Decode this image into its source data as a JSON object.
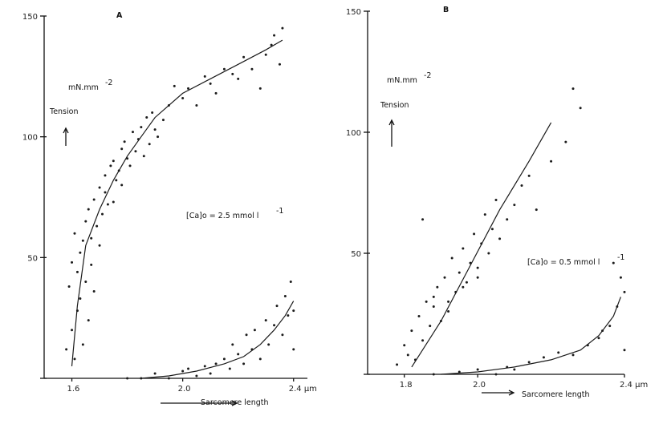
{
  "chart_data": [
    {
      "panel": "A",
      "type": "scatter",
      "xlabel": "Sarcomere length",
      "ylabel": "Tension",
      "unit_y": "mN.mm",
      "unit_y_exp": "-2",
      "x_unit": "µm",
      "xlim": [
        1.5,
        2.45
      ],
      "ylim": [
        0,
        150
      ],
      "x_ticks": [
        1.6,
        2.0,
        2.4
      ],
      "x_tick_labels": [
        "1.6",
        "2.0",
        "2.4 µm"
      ],
      "y_ticks": [
        0,
        50,
        100,
        150
      ],
      "y_tick_labels": [
        "",
        "50",
        "100",
        "150"
      ],
      "annotation": "[Ca]o = 2.5 mmol l",
      "annotation_exp": "-1",
      "series": [
        {
          "curve": {
            "x": [
              1.6,
              1.62,
              1.65,
              1.7,
              1.75,
              1.8,
              1.85,
              1.9,
              2.0,
              2.1,
              2.2,
              2.3,
              2.36
            ],
            "y": [
              5,
              30,
              55,
              70,
              82,
              92,
              100,
              108,
              118,
              124,
              130,
              136,
              140
            ]
          },
          "points": {
            "x": [
              1.58,
              1.59,
              1.6,
              1.6,
              1.61,
              1.61,
              1.62,
              1.62,
              1.63,
              1.63,
              1.64,
              1.64,
              1.65,
              1.65,
              1.66,
              1.66,
              1.67,
              1.67,
              1.68,
              1.68,
              1.69,
              1.7,
              1.7,
              1.71,
              1.72,
              1.72,
              1.73,
              1.74,
              1.75,
              1.75,
              1.76,
              1.77,
              1.78,
              1.78,
              1.79,
              1.8,
              1.81,
              1.82,
              1.83,
              1.84,
              1.85,
              1.86,
              1.87,
              1.88,
              1.89,
              1.9,
              1.91,
              1.93,
              1.95,
              1.97,
              2.0,
              2.02,
              2.05,
              2.08,
              2.1,
              2.12,
              2.15,
              2.18,
              2.2,
              2.22,
              2.25,
              2.28,
              2.3,
              2.32,
              2.33,
              2.35,
              2.36
            ],
            "y": [
              12,
              38,
              20,
              48,
              8,
              60,
              28,
              44,
              33,
              52,
              14,
              57,
              40,
              65,
              24,
              70,
              47,
              58,
              36,
              74,
              63,
              79,
              55,
              68,
              84,
              77,
              72,
              88,
              73,
              90,
              82,
              86,
              95,
              80,
              98,
              91,
              88,
              102,
              94,
              99,
              104,
              92,
              108,
              97,
              110,
              103,
              100,
              107,
              113,
              121,
              116,
              120,
              113,
              125,
              122,
              118,
              128,
              126,
              124,
              133,
              128,
              120,
              134,
              138,
              142,
              130,
              145
            ]
          }
        },
        {
          "curve": {
            "x": [
              1.85,
              1.95,
              2.05,
              2.15,
              2.22,
              2.28,
              2.33,
              2.37,
              2.4
            ],
            "y": [
              0,
              1,
              3,
              6,
              9,
              14,
              20,
              26,
              32
            ]
          },
          "points": {
            "x": [
              1.8,
              1.85,
              1.9,
              1.95,
              2.0,
              2.02,
              2.05,
              2.08,
              2.1,
              2.12,
              2.15,
              2.17,
              2.18,
              2.2,
              2.22,
              2.23,
              2.25,
              2.26,
              2.28,
              2.3,
              2.31,
              2.33,
              2.34,
              2.36,
              2.37,
              2.38,
              2.39,
              2.4,
              2.4
            ],
            "y": [
              0,
              0,
              2,
              0,
              3,
              4,
              1,
              5,
              2,
              6,
              8,
              4,
              14,
              10,
              6,
              18,
              12,
              20,
              8,
              24,
              14,
              22,
              30,
              18,
              34,
              26,
              40,
              12,
              28
            ]
          }
        }
      ],
      "grid": false,
      "legend": "none"
    },
    {
      "panel": "B",
      "type": "scatter",
      "xlabel": "Sarcomere length",
      "ylabel": "Tension",
      "unit_y": "mN.mm",
      "unit_y_exp": "-2",
      "x_unit": "µm",
      "xlim": [
        1.7,
        2.4
      ],
      "ylim": [
        0,
        150
      ],
      "x_ticks": [
        1.8,
        2.0,
        2.4
      ],
      "x_tick_labels": [
        "1.8",
        "2.0",
        "2.4 µm"
      ],
      "y_ticks": [
        0,
        50,
        100,
        150
      ],
      "y_tick_labels": [
        "",
        "50",
        "100",
        "150"
      ],
      "annotation": "[Ca]o = 0.5 mmol l",
      "annotation_exp": "-1",
      "series": [
        {
          "curve": {
            "x": [
              1.82,
              1.9,
              1.98,
              2.06,
              2.14,
              2.2
            ],
            "y": [
              3,
              22,
              45,
              68,
              88,
              104
            ]
          },
          "points": {
            "x": [
              1.78,
              1.8,
              1.81,
              1.82,
              1.83,
              1.84,
              1.85,
              1.86,
              1.87,
              1.88,
              1.89,
              1.9,
              1.91,
              1.92,
              1.93,
              1.94,
              1.95,
              1.96,
              1.97,
              1.98,
              1.99,
              2.0,
              2.01,
              2.02,
              2.03,
              2.04,
              2.05,
              2.06,
              2.08,
              2.1,
              2.12,
              2.14,
              2.16,
              2.2,
              2.24,
              2.26,
              2.28,
              1.85,
              1.88,
              1.92,
              1.96,
              2.0
            ],
            "y": [
              4,
              12,
              8,
              18,
              6,
              24,
              14,
              30,
              20,
              28,
              36,
              22,
              40,
              30,
              48,
              34,
              42,
              52,
              38,
              46,
              58,
              44,
              54,
              66,
              50,
              60,
              72,
              56,
              64,
              70,
              78,
              82,
              68,
              88,
              96,
              118,
              110,
              64,
              32,
              26,
              36,
              40
            ]
          }
        },
        {
          "curve": {
            "x": [
              1.9,
              2.0,
              2.1,
              2.2,
              2.28,
              2.33,
              2.37,
              2.39
            ],
            "y": [
              0,
              1,
              3,
              6,
              10,
              16,
              24,
              32
            ]
          },
          "points": {
            "x": [
              1.88,
              1.95,
              2.0,
              2.05,
              2.08,
              2.1,
              2.14,
              2.18,
              2.22,
              2.26,
              2.3,
              2.33,
              2.36,
              2.38,
              2.39,
              2.4,
              2.4,
              2.37,
              2.34
            ],
            "y": [
              0,
              1,
              2,
              0,
              3,
              2,
              5,
              7,
              9,
              8,
              12,
              15,
              20,
              28,
              40,
              10,
              34,
              46,
              18
            ]
          }
        }
      ],
      "grid": false,
      "legend": "none"
    }
  ],
  "panels": {
    "A": {
      "letter": "A",
      "xlabel": "Sarcomere length",
      "ylabel": "Tension"
    },
    "B": {
      "letter": "B",
      "xlabel": "Sarcomere length",
      "ylabel": "Tension"
    }
  }
}
